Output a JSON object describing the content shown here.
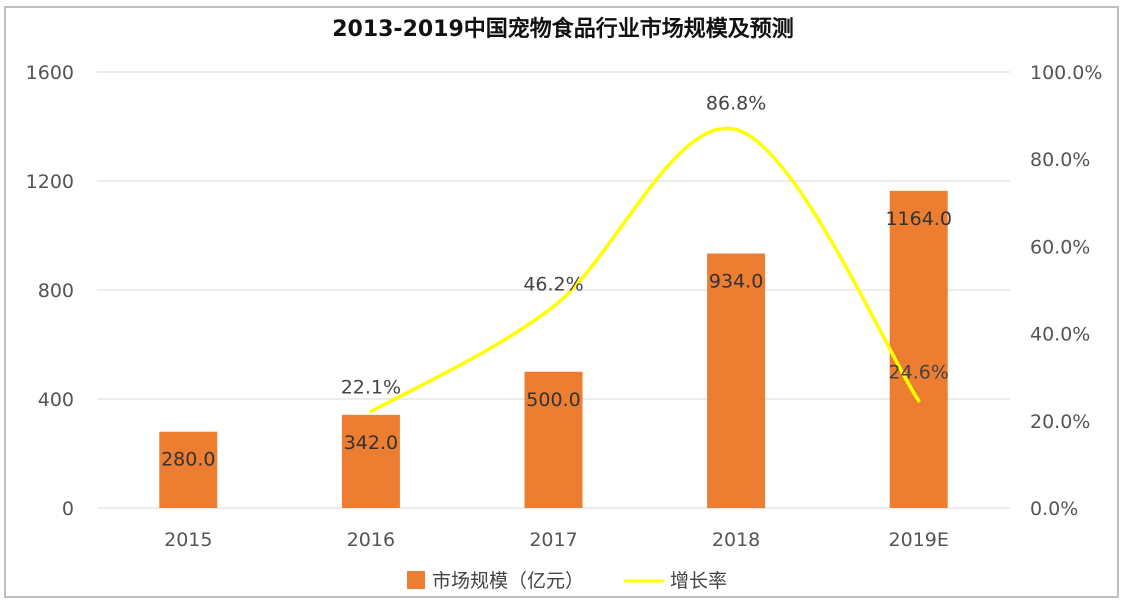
{
  "chart_data": {
    "type": "bar",
    "title": "2013-2019中国宠物食品行业市场规模及预测",
    "categories": [
      "2015",
      "2016",
      "2017",
      "2018",
      "2019E"
    ],
    "series": [
      {
        "name": "市场规模（亿元）",
        "type": "bar",
        "axis": "left",
        "color": "#ED7D31",
        "values": [
          280.0,
          342.0,
          500.0,
          934.0,
          1164.0
        ],
        "labels": [
          "280.0",
          "342.0",
          "500.0",
          "934.0",
          "1164.0"
        ]
      },
      {
        "name": "增长率",
        "type": "line",
        "axis": "right",
        "color": "#FFFF00",
        "values": [
          null,
          22.1,
          46.2,
          86.8,
          24.6
        ],
        "labels": [
          "",
          "22.1%",
          "46.2%",
          "86.8%",
          "24.6%"
        ]
      }
    ],
    "y_left": {
      "min": 0,
      "max": 1600,
      "ticks": [
        0,
        400,
        800,
        1200,
        1600
      ],
      "tick_labels": [
        "0",
        "400",
        "800",
        "1200",
        "1600"
      ]
    },
    "y_right": {
      "min": 0,
      "max": 100,
      "ticks": [
        0,
        20,
        40,
        60,
        80,
        100
      ],
      "tick_labels": [
        "0.0%",
        "20.0%",
        "40.0%",
        "60.0%",
        "80.0%",
        "100.0%"
      ]
    },
    "grid": true,
    "legend_position": "bottom"
  }
}
